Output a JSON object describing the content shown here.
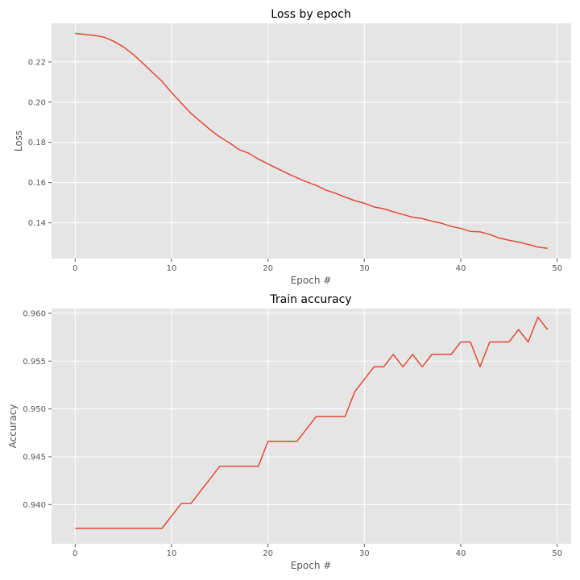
{
  "chart_data": [
    {
      "type": "line",
      "title": "Loss by epoch",
      "xlabel": "Epoch #",
      "ylabel": "Loss",
      "xlim": [
        -2.45,
        51.45
      ],
      "ylim": [
        0.1222,
        0.2392
      ],
      "xticks": [
        0,
        10,
        20,
        30,
        40,
        50
      ],
      "yticks": [
        0.14,
        0.16,
        0.18,
        0.2,
        0.22
      ],
      "ytick_labels": [
        "0.14",
        "0.16",
        "0.18",
        "0.20",
        "0.22"
      ],
      "grid": true,
      "series": [
        {
          "x": [
            0,
            1,
            2,
            3,
            4,
            5,
            6,
            7,
            8,
            9,
            10,
            11,
            12,
            13,
            14,
            15,
            16,
            17,
            18,
            19,
            20,
            21,
            22,
            23,
            24,
            25,
            26,
            27,
            28,
            29,
            30,
            31,
            32,
            33,
            34,
            35,
            36,
            37,
            38,
            39,
            40,
            41,
            42,
            43,
            44,
            45,
            46,
            47,
            48,
            49
          ],
          "values": [
            0.2342,
            0.2337,
            0.2332,
            0.2323,
            0.2303,
            0.2275,
            0.2238,
            0.2195,
            0.2149,
            0.2104,
            0.2048,
            0.1996,
            0.1945,
            0.1904,
            0.1863,
            0.1827,
            0.1798,
            0.1764,
            0.1746,
            0.1717,
            0.1693,
            0.1669,
            0.1646,
            0.1624,
            0.1604,
            0.1586,
            0.1563,
            0.1547,
            0.1528,
            0.151,
            0.1497,
            0.1479,
            0.147,
            0.1455,
            0.1441,
            0.1428,
            0.1421,
            0.1408,
            0.1398,
            0.1382,
            0.1372,
            0.1357,
            0.1355,
            0.1342,
            0.1324,
            0.1313,
            0.1304,
            0.1292,
            0.1279,
            0.1273
          ]
        }
      ]
    },
    {
      "type": "line",
      "title": "Train accuracy",
      "xlabel": "Epoch #",
      "ylabel": "Accuracy",
      "xlim": [
        -2.45,
        51.45
      ],
      "ylim": [
        0.9359,
        0.9605
      ],
      "xticks": [
        0,
        10,
        20,
        30,
        40,
        50
      ],
      "yticks": [
        0.94,
        0.945,
        0.95,
        0.955,
        0.96
      ],
      "ytick_labels": [
        "0.940",
        "0.945",
        "0.950",
        "0.955",
        "0.960"
      ],
      "grid": true,
      "series": [
        {
          "x": [
            0,
            1,
            2,
            3,
            4,
            5,
            6,
            7,
            8,
            9,
            10,
            11,
            12,
            13,
            14,
            15,
            16,
            17,
            18,
            19,
            20,
            21,
            22,
            23,
            24,
            25,
            26,
            27,
            28,
            29,
            30,
            31,
            32,
            33,
            34,
            35,
            36,
            37,
            38,
            39,
            40,
            41,
            42,
            43,
            44,
            45,
            46,
            47,
            48,
            49
          ],
          "values": [
            0.9375,
            0.9375,
            0.9375,
            0.9375,
            0.9375,
            0.9375,
            0.9375,
            0.9375,
            0.9375,
            0.9375,
            0.9388,
            0.9401,
            0.9401,
            0.9414,
            0.9427,
            0.944,
            0.944,
            0.944,
            0.944,
            0.944,
            0.9466,
            0.9466,
            0.9466,
            0.9466,
            0.9479,
            0.9492,
            0.9492,
            0.9492,
            0.9492,
            0.9518,
            0.9531,
            0.9544,
            0.9544,
            0.9557,
            0.9544,
            0.9557,
            0.9544,
            0.9557,
            0.9557,
            0.9557,
            0.957,
            0.957,
            0.9544,
            0.957,
            0.957,
            0.957,
            0.9583,
            0.957,
            0.9596,
            0.9583
          ]
        }
      ]
    }
  ]
}
